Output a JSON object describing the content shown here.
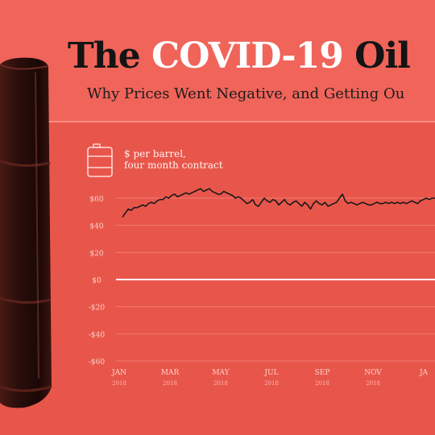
{
  "title": {
    "part1": "The ",
    "highlight": "COVID-19",
    "part2": " Oil"
  },
  "subtitle": "Why Prices Went Negative, and Getting Ou",
  "chart_data": {
    "type": "line",
    "unit_label": [
      "$ per barrel,",
      "four month contract"
    ],
    "y_ticks": [
      {
        "label": "$60",
        "value": 60
      },
      {
        "label": "$40",
        "value": 40
      },
      {
        "label": "$20",
        "value": 20
      },
      {
        "label": "$0",
        "value": 0
      },
      {
        "label": "-$20",
        "value": -20
      },
      {
        "label": "-$40",
        "value": -40
      },
      {
        "label": "-$60",
        "value": -60
      }
    ],
    "ylim": [
      -60,
      60
    ],
    "x_ticks": [
      {
        "month": "JAN",
        "year": "2018"
      },
      {
        "month": "MAR",
        "year": "2018"
      },
      {
        "month": "MAY",
        "year": "2018"
      },
      {
        "month": "JUL",
        "year": "2018"
      },
      {
        "month": "SEP",
        "year": "2018"
      },
      {
        "month": "NOV",
        "year": "2018"
      },
      {
        "month": "JA",
        "year": ""
      }
    ],
    "series": [
      {
        "color": "#1a1a1a",
        "values": [
          46,
          49,
          52,
          51,
          53,
          53,
          54,
          55,
          54,
          56,
          57,
          56,
          58,
          59,
          59,
          61,
          60,
          62,
          63,
          61,
          62,
          63,
          64,
          63,
          64,
          65,
          66,
          67,
          65,
          66,
          67,
          65,
          64,
          63,
          63,
          65,
          64,
          63,
          62,
          60,
          61,
          60,
          58,
          56,
          57,
          59,
          55,
          54,
          57,
          60,
          58,
          57,
          59,
          58,
          55,
          57,
          59,
          56,
          55,
          57,
          58,
          56,
          54,
          57,
          55,
          52,
          56,
          58,
          56,
          55,
          57,
          54,
          55,
          56,
          57,
          60,
          63,
          58,
          56,
          57,
          56,
          55,
          56,
          57,
          56,
          55,
          55,
          56,
          57,
          56,
          56,
          57,
          56,
          57,
          56,
          57,
          56,
          57,
          56,
          57,
          58,
          57,
          56,
          58,
          59,
          60,
          59,
          60,
          60
        ]
      }
    ],
    "zero_line": true
  }
}
